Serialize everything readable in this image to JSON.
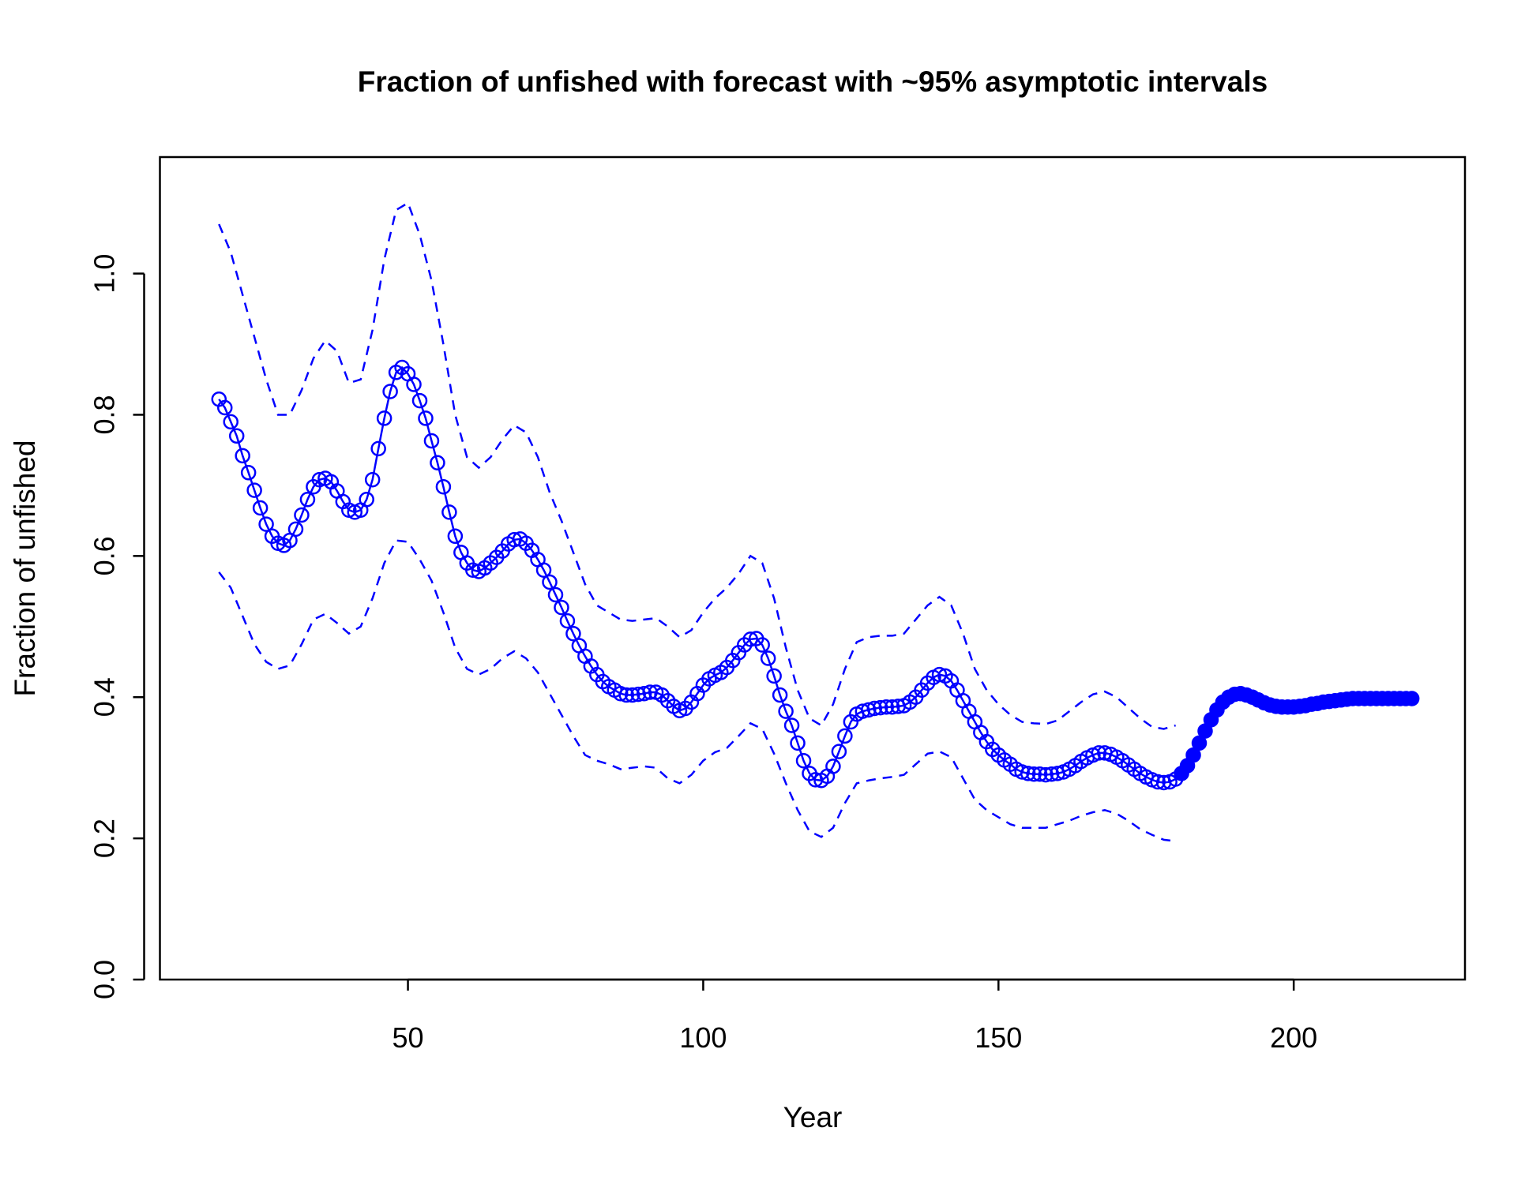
{
  "chart_data": {
    "type": "line",
    "title": "Fraction of unfished with forecast with ~95% asymptotic intervals",
    "xlabel": "Year",
    "ylabel": "Fraction of unfished",
    "xlim": [
      8,
      229
    ],
    "xticks": [
      50,
      100,
      150,
      200
    ],
    "ylim": [
      0,
      1.165
    ],
    "yticks": [
      {
        "value": 0,
        "label": "0.0"
      },
      0.2,
      0.4,
      0.6,
      0.8,
      {
        "value": 1,
        "label": "1.0"
      }
    ],
    "color": "#0000ff",
    "series": [
      {
        "marker": "open",
        "x": [
          18,
          19,
          20,
          21,
          22,
          23,
          24,
          25,
          26,
          27,
          28,
          29,
          30,
          31,
          32,
          33,
          34,
          35,
          36,
          37,
          38,
          39,
          40,
          41,
          42,
          43,
          44,
          45,
          46,
          47,
          48,
          49,
          50,
          51,
          52,
          53,
          54,
          55,
          56,
          57,
          58,
          59,
          60,
          61,
          62,
          63,
          64,
          65,
          66,
          67,
          68,
          69,
          70,
          71,
          72,
          73,
          74,
          75,
          76,
          77,
          78,
          79,
          80,
          81,
          82,
          83,
          84,
          85,
          86,
          87,
          88,
          89,
          90,
          91,
          92,
          93,
          94,
          95,
          96,
          97,
          98,
          99,
          100,
          101,
          102,
          103,
          104,
          105,
          106,
          107,
          108,
          109,
          110,
          111,
          112,
          113,
          114,
          115,
          116,
          117,
          118,
          119,
          120,
          121,
          122,
          123,
          124,
          125,
          126,
          127,
          128,
          129,
          130,
          131,
          132,
          133,
          134,
          135,
          136,
          137,
          138,
          139,
          140,
          141,
          142,
          143,
          144,
          145,
          146,
          147,
          148,
          149,
          150,
          151,
          152,
          153,
          154,
          155,
          156,
          157,
          158,
          159,
          160,
          161,
          162,
          163,
          164,
          165,
          166,
          167,
          168,
          169,
          170,
          171,
          172,
          173,
          174,
          175,
          176,
          177,
          178,
          179,
          180
        ],
        "values": [
          0.822,
          0.81,
          0.79,
          0.77,
          0.742,
          0.718,
          0.693,
          0.668,
          0.645,
          0.628,
          0.618,
          0.615,
          0.622,
          0.638,
          0.658,
          0.68,
          0.698,
          0.708,
          0.71,
          0.705,
          0.692,
          0.677,
          0.665,
          0.662,
          0.665,
          0.68,
          0.708,
          0.752,
          0.795,
          0.833,
          0.86,
          0.867,
          0.858,
          0.843,
          0.82,
          0.795,
          0.763,
          0.732,
          0.698,
          0.662,
          0.628,
          0.605,
          0.59,
          0.58,
          0.578,
          0.583,
          0.59,
          0.598,
          0.607,
          0.617,
          0.623,
          0.624,
          0.618,
          0.608,
          0.595,
          0.58,
          0.563,
          0.545,
          0.527,
          0.508,
          0.49,
          0.473,
          0.458,
          0.444,
          0.432,
          0.422,
          0.415,
          0.41,
          0.405,
          0.403,
          0.403,
          0.404,
          0.405,
          0.407,
          0.407,
          0.403,
          0.395,
          0.387,
          0.381,
          0.384,
          0.393,
          0.405,
          0.417,
          0.426,
          0.431,
          0.435,
          0.442,
          0.452,
          0.463,
          0.474,
          0.482,
          0.483,
          0.474,
          0.455,
          0.43,
          0.403,
          0.38,
          0.36,
          0.335,
          0.31,
          0.292,
          0.283,
          0.282,
          0.288,
          0.302,
          0.323,
          0.345,
          0.365,
          0.376,
          0.38,
          0.382,
          0.384,
          0.385,
          0.386,
          0.386,
          0.387,
          0.388,
          0.393,
          0.4,
          0.41,
          0.42,
          0.428,
          0.432,
          0.43,
          0.423,
          0.41,
          0.395,
          0.38,
          0.365,
          0.35,
          0.337,
          0.326,
          0.318,
          0.311,
          0.305,
          0.298,
          0.294,
          0.292,
          0.291,
          0.291,
          0.29,
          0.291,
          0.292,
          0.294,
          0.298,
          0.303,
          0.309,
          0.314,
          0.318,
          0.321,
          0.321,
          0.319,
          0.315,
          0.31,
          0.304,
          0.298,
          0.292,
          0.287,
          0.283,
          0.28,
          0.279,
          0.28,
          0.284
        ]
      },
      {
        "marker": "filled",
        "x": [
          181,
          182,
          183,
          184,
          185,
          186,
          187,
          188,
          189,
          190,
          191,
          192,
          193,
          194,
          195,
          196,
          197,
          198,
          199,
          200,
          201,
          202,
          203,
          204,
          205,
          206,
          207,
          208,
          209,
          210,
          211,
          212,
          213,
          214,
          215,
          216,
          217,
          218,
          219,
          220
        ],
        "values": [
          0.292,
          0.303,
          0.318,
          0.335,
          0.352,
          0.368,
          0.382,
          0.393,
          0.4,
          0.404,
          0.405,
          0.403,
          0.4,
          0.396,
          0.392,
          0.389,
          0.387,
          0.386,
          0.386,
          0.386,
          0.387,
          0.388,
          0.39,
          0.391,
          0.393,
          0.394,
          0.395,
          0.396,
          0.397,
          0.398,
          0.398,
          0.398,
          0.398,
          0.398,
          0.398,
          0.398,
          0.398,
          0.398,
          0.398,
          0.398
        ]
      },
      {
        "marker": "dashed",
        "x": [
          18,
          20,
          22,
          24,
          26,
          28,
          30,
          32,
          34,
          36,
          38,
          40,
          42,
          44,
          46,
          48,
          50,
          52,
          54,
          56,
          58,
          60,
          62,
          64,
          66,
          68,
          70,
          72,
          74,
          76,
          78,
          80,
          82,
          84,
          86,
          88,
          90,
          92,
          94,
          96,
          98,
          100,
          102,
          104,
          106,
          108,
          110,
          112,
          114,
          116,
          118,
          120,
          122,
          124,
          126,
          128,
          130,
          132,
          134,
          136,
          138,
          140,
          142,
          144,
          146,
          148,
          150,
          152,
          154,
          156,
          158,
          160,
          162,
          164,
          166,
          168,
          170,
          172,
          174,
          176,
          178,
          180
        ],
        "values": [
          1.07,
          1.03,
          0.97,
          0.91,
          0.85,
          0.8,
          0.8,
          0.835,
          0.88,
          0.905,
          0.89,
          0.845,
          0.85,
          0.92,
          1.02,
          1.09,
          1.1,
          1.055,
          0.99,
          0.9,
          0.8,
          0.74,
          0.725,
          0.74,
          0.765,
          0.785,
          0.775,
          0.74,
          0.69,
          0.65,
          0.605,
          0.56,
          0.53,
          0.52,
          0.51,
          0.508,
          0.51,
          0.512,
          0.5,
          0.485,
          0.495,
          0.52,
          0.54,
          0.555,
          0.575,
          0.6,
          0.59,
          0.54,
          0.47,
          0.41,
          0.37,
          0.36,
          0.39,
          0.44,
          0.478,
          0.485,
          0.487,
          0.487,
          0.49,
          0.51,
          0.53,
          0.542,
          0.53,
          0.49,
          0.44,
          0.41,
          0.39,
          0.375,
          0.365,
          0.363,
          0.362,
          0.367,
          0.38,
          0.393,
          0.404,
          0.408,
          0.4,
          0.385,
          0.37,
          0.358,
          0.355,
          0.36
        ]
      },
      {
        "marker": "dashed",
        "x": [
          18,
          20,
          22,
          24,
          26,
          28,
          30,
          32,
          34,
          36,
          38,
          40,
          42,
          44,
          46,
          48,
          50,
          52,
          54,
          56,
          58,
          60,
          62,
          64,
          66,
          68,
          70,
          72,
          74,
          76,
          78,
          80,
          82,
          84,
          86,
          88,
          90,
          92,
          94,
          96,
          98,
          100,
          102,
          104,
          106,
          108,
          110,
          112,
          114,
          116,
          118,
          120,
          122,
          124,
          126,
          128,
          130,
          132,
          134,
          136,
          138,
          140,
          142,
          144,
          146,
          148,
          150,
          152,
          154,
          156,
          158,
          160,
          162,
          164,
          166,
          168,
          170,
          172,
          174,
          176,
          178,
          180
        ],
        "values": [
          0.577,
          0.555,
          0.515,
          0.475,
          0.45,
          0.44,
          0.445,
          0.475,
          0.51,
          0.518,
          0.505,
          0.49,
          0.5,
          0.54,
          0.59,
          0.622,
          0.62,
          0.595,
          0.565,
          0.52,
          0.47,
          0.44,
          0.432,
          0.44,
          0.455,
          0.465,
          0.455,
          0.435,
          0.405,
          0.375,
          0.345,
          0.318,
          0.31,
          0.305,
          0.298,
          0.3,
          0.302,
          0.3,
          0.285,
          0.278,
          0.29,
          0.31,
          0.322,
          0.328,
          0.345,
          0.363,
          0.355,
          0.32,
          0.278,
          0.24,
          0.21,
          0.202,
          0.215,
          0.25,
          0.278,
          0.282,
          0.285,
          0.287,
          0.29,
          0.305,
          0.32,
          0.323,
          0.315,
          0.285,
          0.255,
          0.24,
          0.23,
          0.22,
          0.215,
          0.215,
          0.215,
          0.22,
          0.225,
          0.232,
          0.237,
          0.24,
          0.235,
          0.225,
          0.213,
          0.205,
          0.198,
          0.196
        ]
      }
    ]
  }
}
